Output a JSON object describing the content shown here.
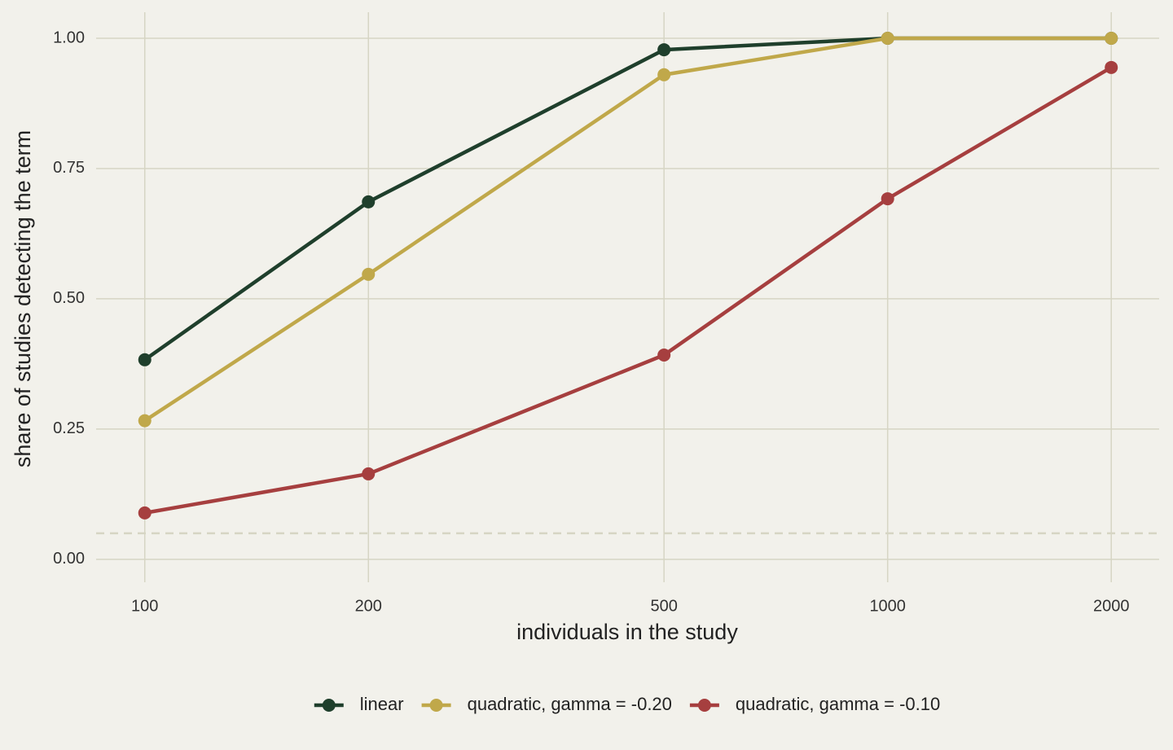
{
  "chart_data": {
    "type": "line",
    "x_label": "individuals in the study",
    "y_label": "share of studies detecting the term",
    "x": [
      100,
      200,
      500,
      1000,
      2000
    ],
    "xscale": "log",
    "xlim": [
      86,
      2320
    ],
    "xticks": [
      100,
      200,
      500,
      1000,
      2000
    ],
    "ylim": [
      -0.044,
      1.05
    ],
    "yticks": [
      {
        "value": 0,
        "label": "0.00"
      },
      {
        "value": 0.25,
        "label": "0.25"
      },
      {
        "value": 0.5,
        "label": "0.50"
      },
      {
        "value": 0.75,
        "label": "0.75"
      },
      {
        "value": 1,
        "label": "1.00"
      }
    ],
    "grid": true,
    "reference_line": 0.05,
    "legend": "bottom",
    "series": [
      {
        "name": "linear",
        "color": "#1f3f2c",
        "values": [
          0.383,
          0.686,
          0.978,
          1.0,
          1.0
        ]
      },
      {
        "name": "quadratic, gamma = -0.20",
        "color": "#c0a84a",
        "values": [
          0.266,
          0.547,
          0.93,
          1.0,
          1.0
        ]
      },
      {
        "name": "quadratic, gamma = -0.10",
        "color": "#a63f3f",
        "values": [
          0.089,
          0.164,
          0.392,
          0.692,
          0.944
        ]
      }
    ]
  }
}
